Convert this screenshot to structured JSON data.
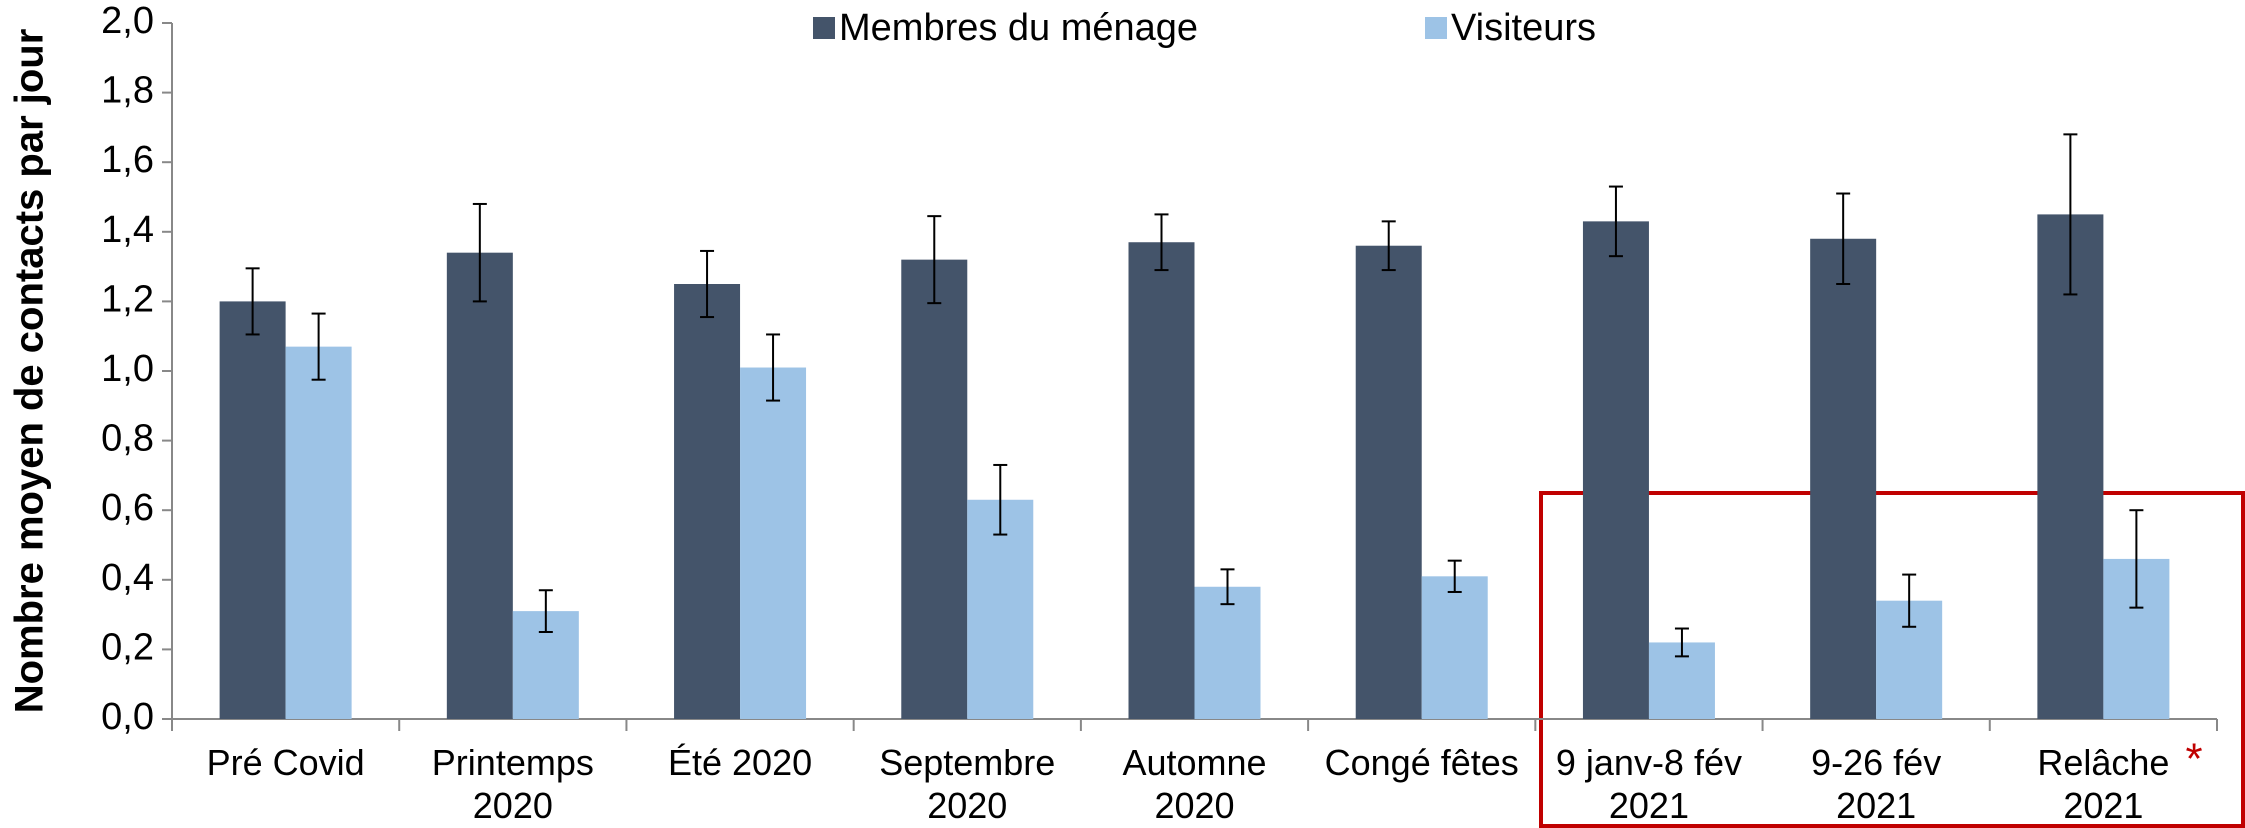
{
  "chart_data": {
    "type": "bar",
    "ylabel": "Nombre moyen de contacts par jour",
    "categories": [
      "Pré Covid",
      "Printemps\n2020",
      "Été 2020",
      "Septembre\n2020",
      "Automne\n2020",
      "Congé fêtes",
      "9 janv-8 fév\n2021",
      "9-26 fév\n2021",
      "Relâche\n2021"
    ],
    "series": [
      {
        "name": "Membres du ménage",
        "color": "#44546a",
        "values": [
          1.2,
          1.34,
          1.25,
          1.32,
          1.37,
          1.36,
          1.43,
          1.38,
          1.45
        ],
        "errors": [
          0.095,
          0.14,
          0.095,
          0.125,
          0.08,
          0.07,
          0.1,
          0.13,
          0.23
        ]
      },
      {
        "name": "Visiteurs",
        "color": "#9dc3e6",
        "values": [
          1.07,
          0.31,
          1.01,
          0.63,
          0.38,
          0.41,
          0.22,
          0.34,
          0.46
        ],
        "errors": [
          0.095,
          0.06,
          0.095,
          0.1,
          0.05,
          0.045,
          0.04,
          0.075,
          0.14
        ]
      }
    ],
    "ylim": [
      0,
      2.0
    ],
    "yticks": [
      {
        "value": 0,
        "label": "0,0"
      },
      {
        "value": 0.2,
        "label": "0,2"
      },
      {
        "value": 0.4,
        "label": "0,4"
      },
      {
        "value": 0.6,
        "label": "0,6"
      },
      {
        "value": 0.8,
        "label": "0,8"
      },
      {
        "value": 1.0,
        "label": "1,0"
      },
      {
        "value": 1.2,
        "label": "1,2"
      },
      {
        "value": 1.4,
        "label": "1,4"
      },
      {
        "value": 1.6,
        "label": "1,6"
      },
      {
        "value": 1.8,
        "label": "1,8"
      },
      {
        "value": 2.0,
        "label": "2,0"
      }
    ],
    "legend": "top",
    "annotation": "*"
  }
}
